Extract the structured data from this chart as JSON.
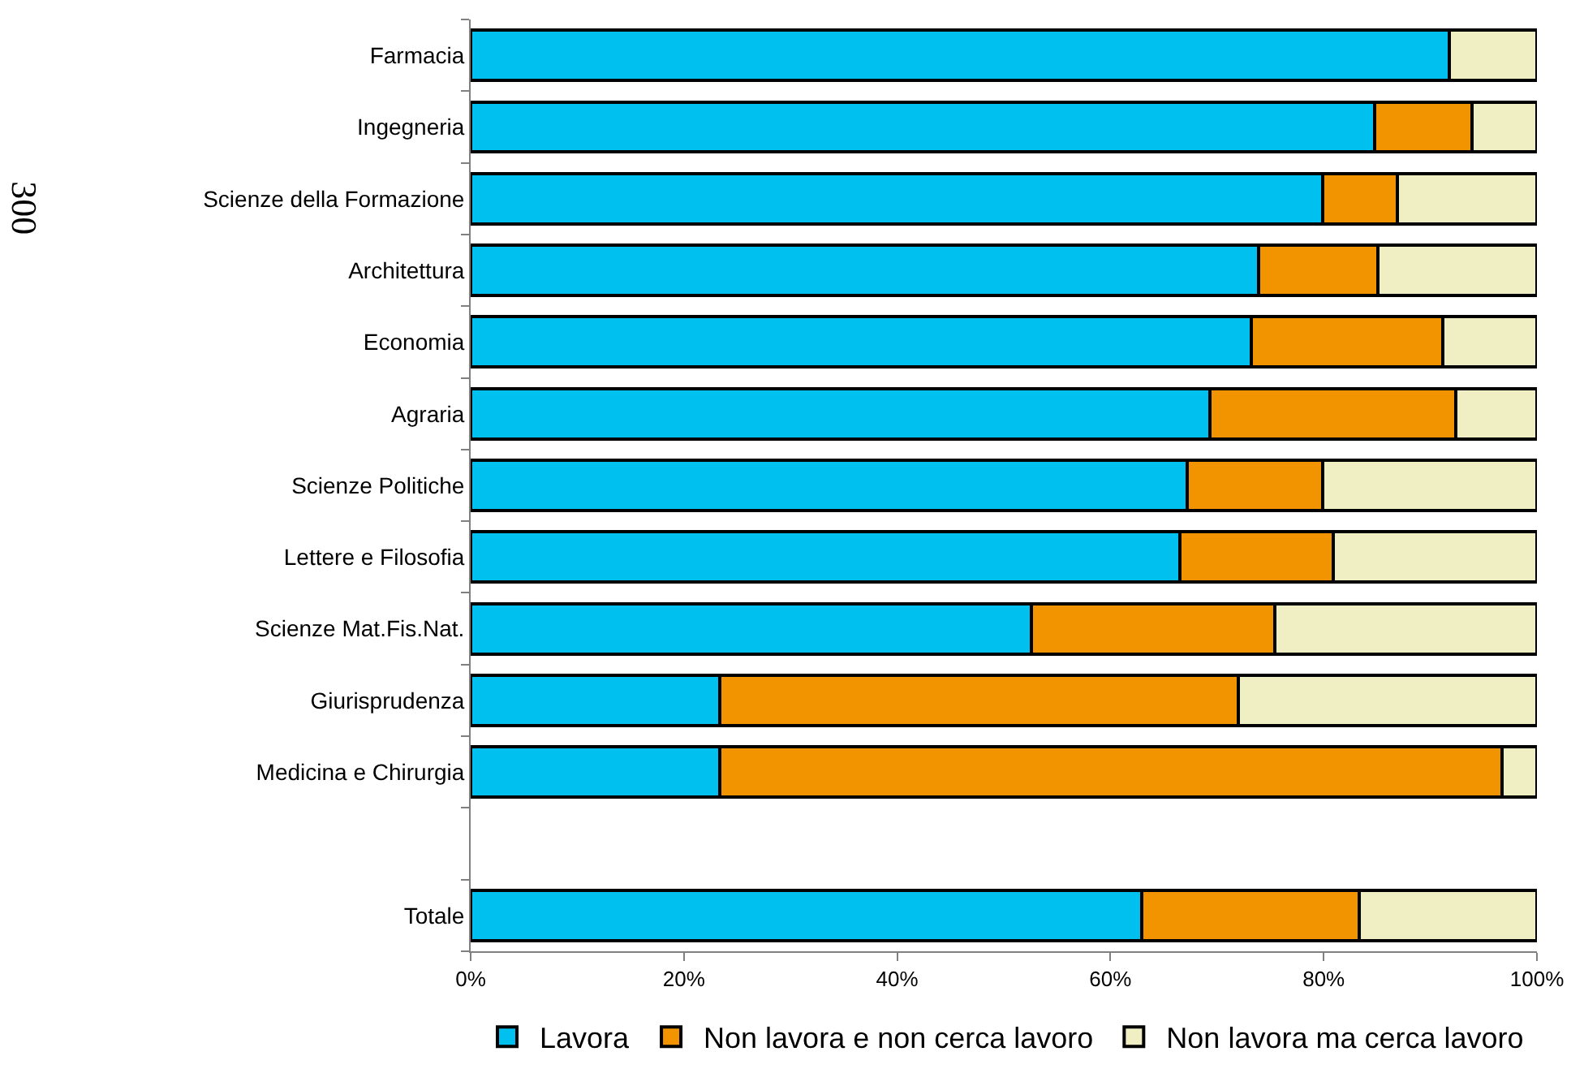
{
  "chart_data": {
    "type": "bar",
    "orientation": "horizontal",
    "stacked": true,
    "categories": [
      "Farmacia",
      "Ingegneria",
      "Scienze della Formazione",
      "Architettura",
      "Economia",
      "Agraria",
      "Scienze Politiche",
      "Lettere e Filosofia",
      "Scienze Mat.Fis.Nat.",
      "Giurisprudenza",
      "Medicina e Chirurgia",
      null,
      "Totale"
    ],
    "series": [
      {
        "name": "Lavora",
        "color": "#00c0f0",
        "values": [
          91.8,
          84.8,
          79.9,
          73.9,
          73.2,
          69.3,
          67.2,
          66.5,
          52.6,
          23.4,
          23.4,
          null,
          62.9
        ]
      },
      {
        "name": "Non lavora e non cerca lavoro",
        "color": "#f29400",
        "values": [
          0,
          9.1,
          7.0,
          11.2,
          18.0,
          23.1,
          12.7,
          14.4,
          22.8,
          48.6,
          73.3,
          null,
          20.4
        ]
      },
      {
        "name": "Non lavora ma cerca lavoro",
        "color": "#f0efc4",
        "values": [
          8.2,
          6.1,
          13.1,
          14.9,
          8.8,
          7.6,
          20.1,
          19.1,
          24.6,
          28.0,
          3.3,
          null,
          16.7
        ]
      }
    ],
    "xlim": [
      0,
      100
    ],
    "xticks": [
      {
        "value": 0,
        "label": "0%"
      },
      {
        "value": 20,
        "label": "20%"
      },
      {
        "value": 40,
        "label": "40%"
      },
      {
        "value": 60,
        "label": "60%"
      },
      {
        "value": 80,
        "label": "80%"
      },
      {
        "value": 100,
        "label": "100%"
      }
    ],
    "annotations": [
      "300"
    ],
    "legend": "bottom"
  }
}
